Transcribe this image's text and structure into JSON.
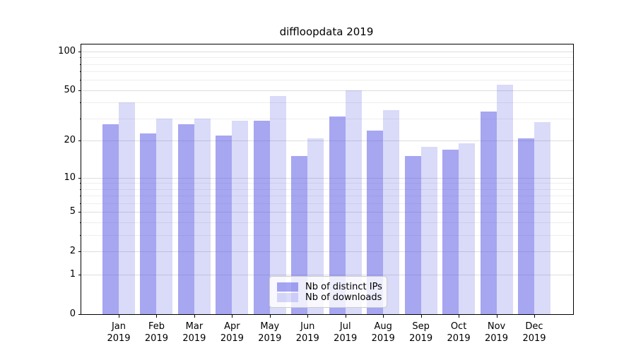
{
  "chart_data": {
    "type": "bar",
    "title": "diffloopdata 2019",
    "categories": [
      "Jan",
      "Feb",
      "Mar",
      "Apr",
      "May",
      "Jun",
      "Jul",
      "Aug",
      "Sep",
      "Oct",
      "Nov",
      "Dec"
    ],
    "year_label": "2019",
    "series": [
      {
        "name": "Nb of distinct IPs",
        "values": [
          27,
          23,
          27,
          22,
          29,
          15,
          31,
          24,
          15,
          17,
          34,
          21
        ],
        "color": "rgba(84,84,228,0.52)"
      },
      {
        "name": "Nb of downloads",
        "values": [
          40,
          30,
          30,
          29,
          45,
          21,
          50,
          35,
          18,
          19,
          55,
          28
        ],
        "color": "rgba(84,84,228,0.215)"
      }
    ],
    "yscale": "log1p",
    "ylim": [
      0,
      113
    ],
    "yticks": [
      100,
      50,
      20,
      10,
      5,
      2,
      1,
      0
    ],
    "minor_yticks": [
      3,
      4,
      6,
      7,
      8,
      9,
      30,
      40,
      60,
      70,
      80,
      90
    ],
    "grid": true,
    "legend_position": "bottom-center",
    "colors": {
      "grid_major": "#dddddd",
      "grid_minor": "#eeeeee",
      "axis": "#000000",
      "text": "#000000"
    }
  }
}
